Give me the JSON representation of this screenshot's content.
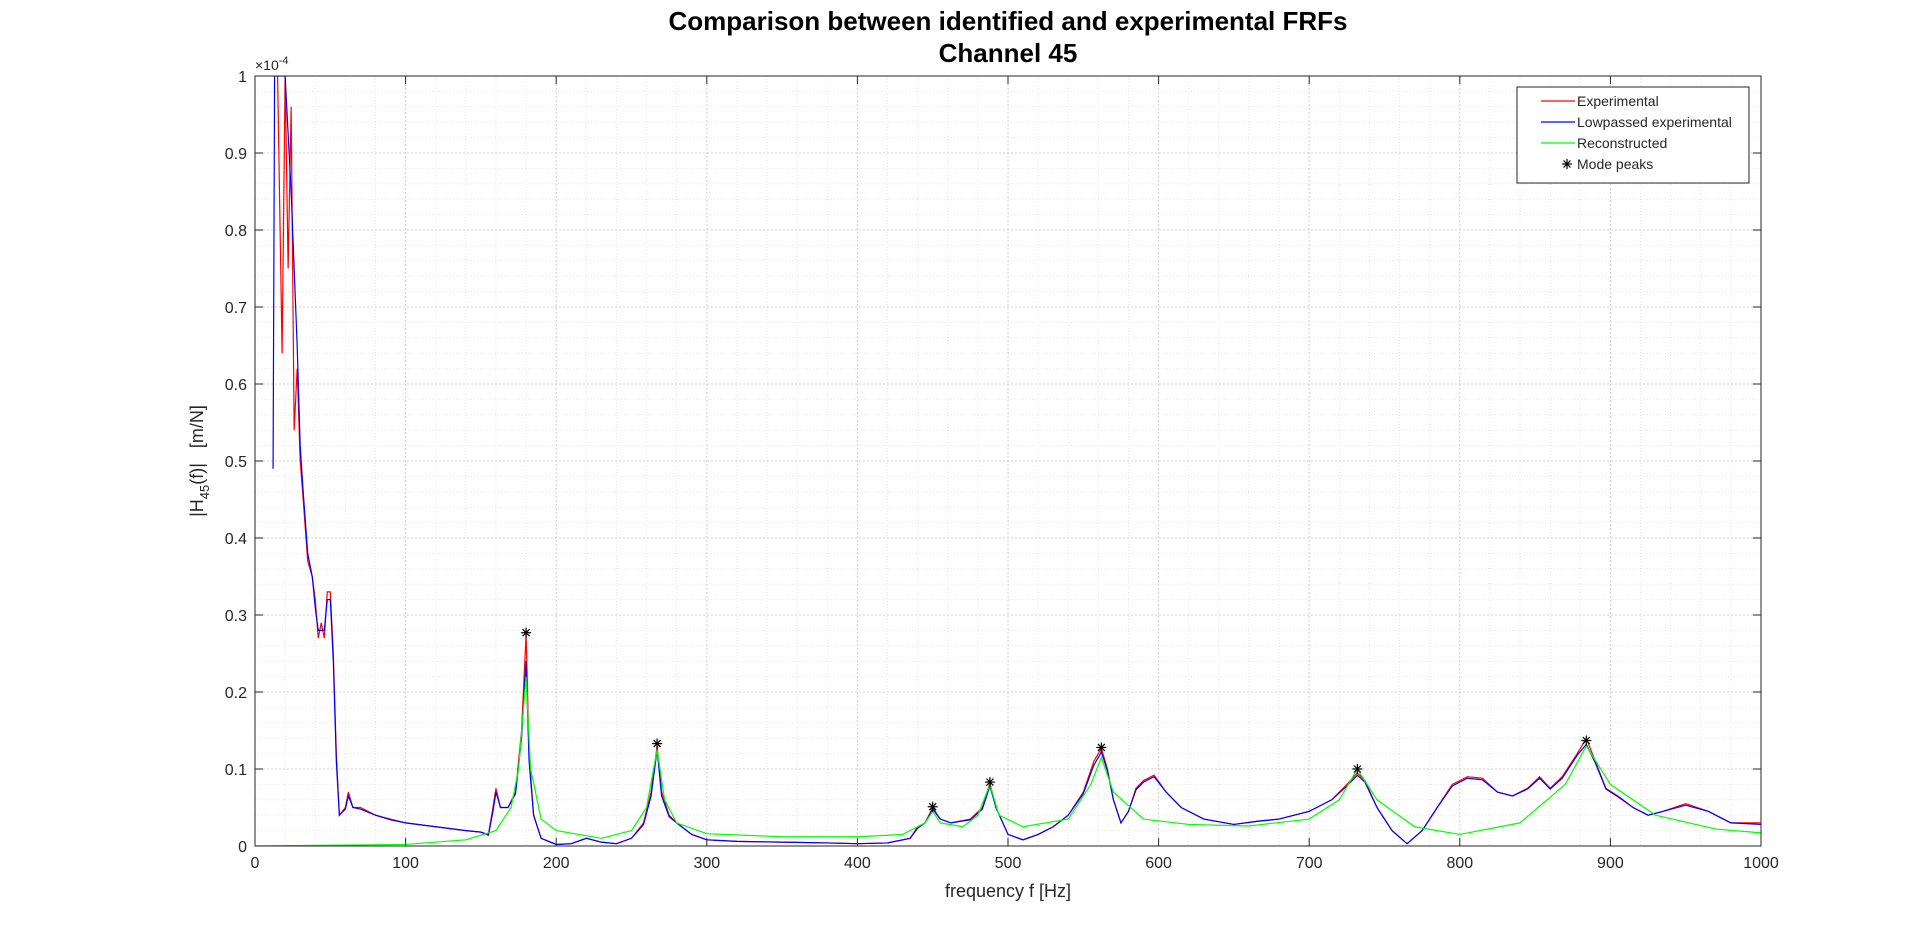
{
  "chart_data": {
    "type": "line",
    "title": "Comparison between identified and experimental FRFs",
    "subtitle": "Channel 45",
    "xlabel": "frequency f [Hz]",
    "ylabel": {
      "prefix": "|H",
      "subscript": "45",
      "suffix": "(f)|   [m/N]"
    },
    "y_exponent": {
      "base": "×10",
      "power": "-4"
    },
    "xlim": [
      0,
      1000
    ],
    "ylim": [
      0,
      1
    ],
    "xticks": [
      0,
      100,
      200,
      300,
      400,
      500,
      600,
      700,
      800,
      900,
      1000
    ],
    "yticks": [
      0,
      0.1,
      0.2,
      0.3,
      0.4,
      0.5,
      0.6,
      0.7,
      0.8,
      0.9,
      1
    ],
    "grid": true,
    "minor_grid": true,
    "legend": "upper-right",
    "series": [
      {
        "name": "Experimental",
        "color": "#ff0000",
        "x": [
          15,
          18,
          20,
          22,
          24,
          26,
          28,
          30,
          32,
          35,
          38,
          40,
          42,
          44,
          46,
          48,
          50,
          52,
          54,
          56,
          60,
          62,
          65,
          70,
          80,
          90,
          100,
          120,
          140,
          150,
          155,
          158,
          160,
          163,
          168,
          173,
          177,
          180,
          182,
          185,
          190,
          200,
          210,
          220,
          230,
          240,
          250,
          258,
          263,
          267,
          270,
          275,
          280,
          290,
          300,
          320,
          350,
          380,
          400,
          420,
          435,
          440,
          445,
          450,
          455,
          462,
          475,
          483,
          488,
          492,
          500,
          510,
          520,
          530,
          540,
          550,
          557,
          562,
          566,
          570,
          575,
          580,
          585,
          590,
          597,
          605,
          615,
          630,
          650,
          665,
          680,
          700,
          715,
          725,
          732,
          737,
          745,
          755,
          765,
          775,
          785,
          795,
          805,
          815,
          825,
          835,
          845,
          853,
          860,
          868,
          878,
          884,
          890,
          897,
          905,
          915,
          925,
          935,
          950,
          965,
          980,
          1000
        ],
        "values": [
          1.0,
          0.64,
          1.0,
          0.75,
          0.96,
          0.54,
          0.62,
          0.5,
          0.45,
          0.37,
          0.35,
          0.32,
          0.27,
          0.29,
          0.27,
          0.33,
          0.33,
          0.25,
          0.12,
          0.04,
          0.05,
          0.07,
          0.05,
          0.05,
          0.04,
          0.035,
          0.03,
          0.025,
          0.02,
          0.018,
          0.015,
          0.05,
          0.075,
          0.05,
          0.05,
          0.07,
          0.15,
          0.275,
          0.12,
          0.04,
          0.01,
          0.002,
          0.003,
          0.01,
          0.005,
          0.003,
          0.01,
          0.03,
          0.07,
          0.13,
          0.07,
          0.04,
          0.03,
          0.015,
          0.008,
          0.006,
          0.005,
          0.004,
          0.003,
          0.004,
          0.01,
          0.025,
          0.03,
          0.05,
          0.035,
          0.03,
          0.035,
          0.05,
          0.082,
          0.05,
          0.015,
          0.008,
          0.015,
          0.025,
          0.04,
          0.07,
          0.11,
          0.127,
          0.1,
          0.06,
          0.03,
          0.045,
          0.075,
          0.085,
          0.092,
          0.07,
          0.05,
          0.035,
          0.028,
          0.032,
          0.035,
          0.045,
          0.06,
          0.08,
          0.095,
          0.085,
          0.05,
          0.02,
          0.003,
          0.02,
          0.05,
          0.08,
          0.09,
          0.088,
          0.07,
          0.065,
          0.075,
          0.09,
          0.075,
          0.09,
          0.12,
          0.14,
          0.11,
          0.075,
          0.065,
          0.05,
          0.04,
          0.045,
          0.055,
          0.045,
          0.03,
          0.03
        ]
      },
      {
        "name": "Lowpassed experimental",
        "color": "#0000ff",
        "x": [
          12,
          13,
          20,
          24,
          28,
          30,
          32,
          35,
          38,
          40,
          42,
          44,
          46,
          48,
          50,
          52,
          54,
          56,
          60,
          62,
          65,
          70,
          80,
          90,
          100,
          120,
          140,
          150,
          155,
          158,
          160,
          163,
          168,
          173,
          177,
          180,
          182,
          185,
          190,
          200,
          210,
          220,
          230,
          240,
          250,
          258,
          263,
          267,
          270,
          275,
          280,
          290,
          300,
          320,
          350,
          380,
          400,
          420,
          435,
          440,
          445,
          450,
          455,
          462,
          475,
          483,
          488,
          492,
          500,
          510,
          520,
          530,
          540,
          550,
          557,
          562,
          566,
          570,
          575,
          580,
          585,
          590,
          597,
          605,
          615,
          630,
          650,
          665,
          680,
          700,
          715,
          725,
          732,
          737,
          745,
          755,
          765,
          775,
          785,
          795,
          805,
          815,
          825,
          835,
          845,
          853,
          860,
          868,
          878,
          884,
          890,
          897,
          905,
          915,
          925,
          935,
          950,
          965,
          980,
          1000
        ],
        "values": [
          0.49,
          1.0,
          1.0,
          0.85,
          0.65,
          0.52,
          0.46,
          0.38,
          0.35,
          0.31,
          0.28,
          0.28,
          0.28,
          0.32,
          0.32,
          0.24,
          0.11,
          0.04,
          0.048,
          0.065,
          0.05,
          0.048,
          0.04,
          0.034,
          0.03,
          0.025,
          0.02,
          0.018,
          0.014,
          0.045,
          0.07,
          0.05,
          0.05,
          0.068,
          0.14,
          0.24,
          0.11,
          0.04,
          0.01,
          0.002,
          0.003,
          0.01,
          0.005,
          0.003,
          0.01,
          0.028,
          0.065,
          0.125,
          0.065,
          0.038,
          0.03,
          0.015,
          0.008,
          0.006,
          0.005,
          0.004,
          0.003,
          0.004,
          0.01,
          0.023,
          0.03,
          0.048,
          0.035,
          0.03,
          0.034,
          0.048,
          0.078,
          0.05,
          0.015,
          0.008,
          0.015,
          0.025,
          0.04,
          0.068,
          0.105,
          0.122,
          0.098,
          0.06,
          0.03,
          0.045,
          0.073,
          0.083,
          0.09,
          0.07,
          0.05,
          0.035,
          0.028,
          0.032,
          0.035,
          0.045,
          0.06,
          0.078,
          0.092,
          0.083,
          0.05,
          0.02,
          0.003,
          0.02,
          0.05,
          0.078,
          0.088,
          0.086,
          0.07,
          0.065,
          0.074,
          0.088,
          0.074,
          0.088,
          0.118,
          0.132,
          0.108,
          0.074,
          0.064,
          0.05,
          0.04,
          0.045,
          0.053,
          0.045,
          0.03,
          0.028
        ]
      },
      {
        "name": "Reconstructed",
        "color": "#00ff00",
        "x": [
          0,
          100,
          140,
          160,
          170,
          175,
          180,
          183,
          190,
          200,
          230,
          250,
          260,
          267,
          272,
          280,
          300,
          350,
          400,
          430,
          445,
          450,
          455,
          470,
          480,
          488,
          494,
          510,
          540,
          555,
          562,
          570,
          590,
          620,
          660,
          700,
          720,
          732,
          745,
          770,
          800,
          840,
          870,
          884,
          900,
          930,
          970,
          1000
        ],
        "values": [
          0,
          0.002,
          0.008,
          0.02,
          0.05,
          0.1,
          0.22,
          0.1,
          0.035,
          0.02,
          0.01,
          0.02,
          0.05,
          0.125,
          0.06,
          0.03,
          0.016,
          0.012,
          0.012,
          0.015,
          0.03,
          0.045,
          0.03,
          0.025,
          0.04,
          0.08,
          0.04,
          0.025,
          0.035,
          0.08,
          0.115,
          0.07,
          0.035,
          0.028,
          0.026,
          0.035,
          0.06,
          0.1,
          0.06,
          0.025,
          0.015,
          0.03,
          0.08,
          0.13,
          0.08,
          0.04,
          0.022,
          0.017
        ]
      },
      {
        "name": "Mode peaks",
        "color": "#000000",
        "marker": "asterisk",
        "x": [
          180,
          267,
          450,
          488,
          562,
          732,
          884
        ],
        "values": [
          0.277,
          0.133,
          0.051,
          0.083,
          0.128,
          0.1,
          0.137
        ]
      }
    ]
  }
}
